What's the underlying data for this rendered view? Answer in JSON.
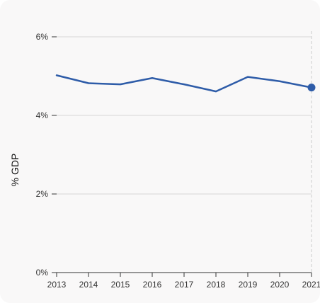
{
  "chart_data": {
    "type": "line",
    "title": "",
    "xlabel": "",
    "ylabel": "% GDP",
    "x": [
      "2013",
      "2014",
      "2015",
      "2016",
      "2017",
      "2018",
      "2019",
      "2020",
      "2021"
    ],
    "series": [
      {
        "values": [
          5.02,
          4.82,
          4.79,
          4.95,
          4.79,
          4.61,
          4.98,
          4.87,
          4.71
        ]
      }
    ],
    "ylim": [
      0,
      6
    ],
    "y_ticks": [
      0,
      2,
      4,
      6
    ],
    "y_tick_labels": [
      "0%",
      "2%",
      "4%",
      "6%"
    ],
    "grid": "horizontal",
    "highlight": "last point marker with dashed vertical guide",
    "colors": {
      "line": "#2e5ca8",
      "grid": "#d6d6d6",
      "axis": "#333333",
      "guide": "#cccccc",
      "background": "#f9f8f8"
    }
  }
}
